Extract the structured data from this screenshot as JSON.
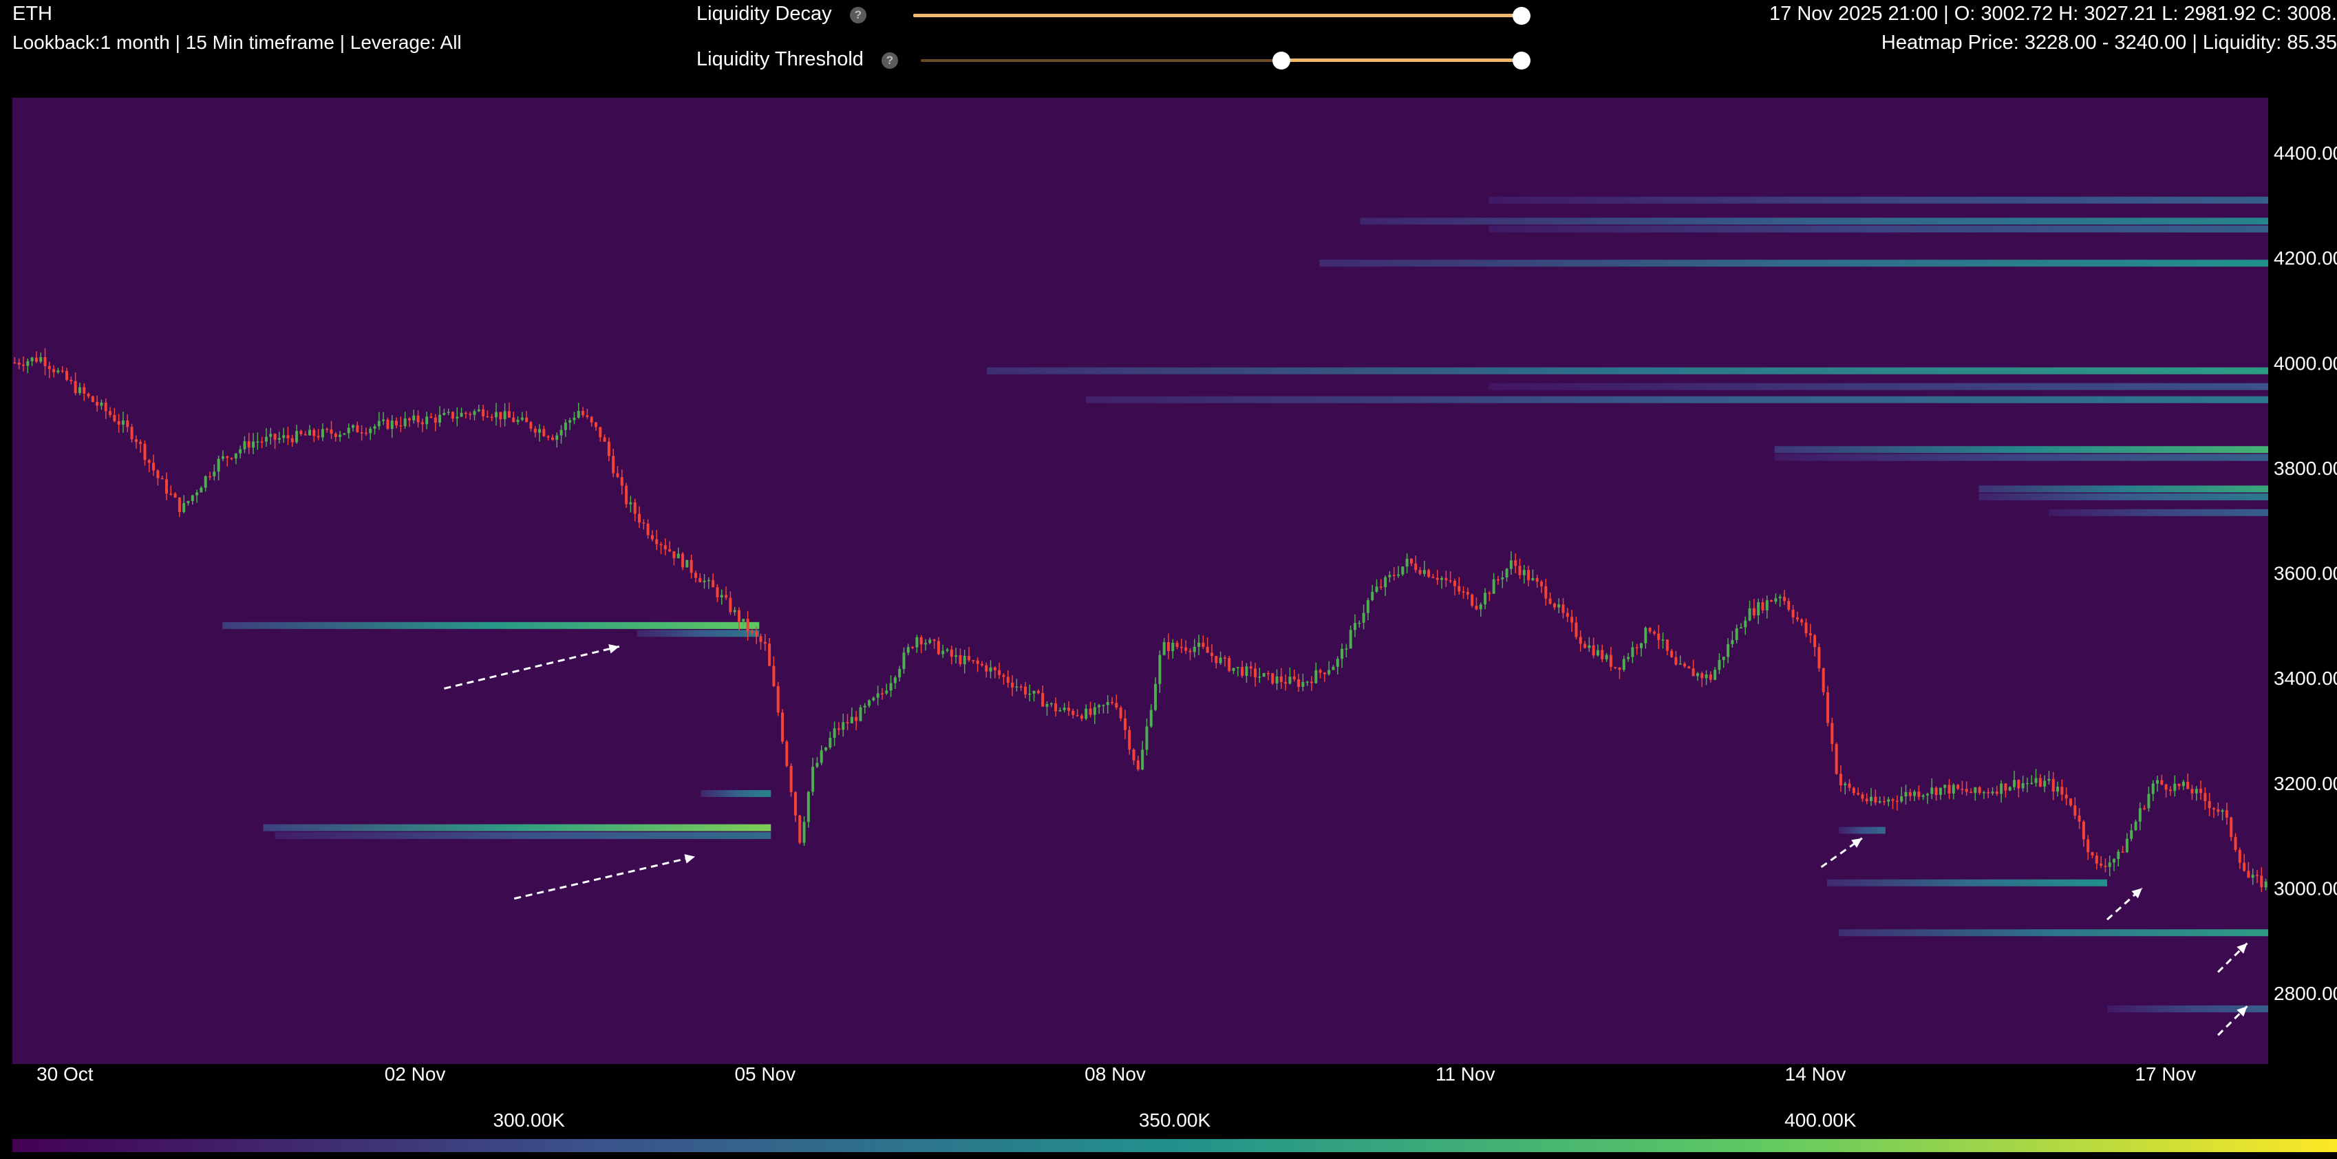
{
  "header": {
    "symbol": "ETH",
    "subinfo": "Lookback:1 month | 15 Min timeframe | Leverage: All",
    "ohlc": "17 Nov 2025 21:00 | O: 3002.72 H: 3027.21 L: 2981.92 C: 3008.",
    "heatmap_price": "Heatmap Price: 3228.00 - 3240.00 | Liquidity: 85.35"
  },
  "controls": {
    "decay": {
      "label": "Liquidity Decay",
      "help": "?",
      "value": 1.0
    },
    "threshold": {
      "label": "Liquidity Threshold",
      "help": "?",
      "range": [
        0.6,
        1.0
      ]
    }
  },
  "colors": {
    "background": "#3b0a4f",
    "up_candle": "#4caf50",
    "down_candle": "#f44336",
    "annotation": "#ffffff",
    "colorscale": [
      "#440154",
      "#3b528b",
      "#21918c",
      "#5ec962",
      "#fde725"
    ]
  },
  "chart_data": {
    "type": "heatmap",
    "overlay": "candlestick",
    "title": "",
    "xlabel": "",
    "ylabel": "",
    "x_ticks": [
      "30 Oct",
      "02 Nov",
      "05 Nov",
      "08 Nov",
      "11 Nov",
      "14 Nov",
      "17 Nov"
    ],
    "x_domain": [
      29.55,
      48.88
    ],
    "x_tick_values": [
      30.0,
      33.0,
      36.0,
      39.0,
      42.0,
      45.0,
      48.0
    ],
    "y_ticks": [
      "4400.00",
      "4200.00",
      "4000.00",
      "3800.00",
      "3600.00",
      "3400.00",
      "3200.00",
      "3000.00",
      "2800.00"
    ],
    "ylim": [
      2665,
      4505
    ],
    "price_path": [
      [
        29.55,
        4000
      ],
      [
        29.8,
        4010
      ],
      [
        30.1,
        3950
      ],
      [
        30.4,
        3900
      ],
      [
        30.6,
        3860
      ],
      [
        30.8,
        3780
      ],
      [
        31.0,
        3720
      ],
      [
        31.3,
        3810
      ],
      [
        31.6,
        3850
      ],
      [
        32.0,
        3860
      ],
      [
        32.4,
        3870
      ],
      [
        32.8,
        3885
      ],
      [
        33.2,
        3895
      ],
      [
        33.6,
        3910
      ],
      [
        34.0,
        3880
      ],
      [
        34.2,
        3860
      ],
      [
        34.4,
        3910
      ],
      [
        34.6,
        3860
      ],
      [
        34.8,
        3740
      ],
      [
        35.0,
        3680
      ],
      [
        35.3,
        3620
      ],
      [
        35.6,
        3560
      ],
      [
        35.9,
        3480
      ],
      [
        36.0,
        3460
      ],
      [
        36.1,
        3350
      ],
      [
        36.2,
        3220
      ],
      [
        36.3,
        3090
      ],
      [
        36.4,
        3220
      ],
      [
        36.6,
        3300
      ],
      [
        36.8,
        3330
      ],
      [
        37.0,
        3370
      ],
      [
        37.3,
        3480
      ],
      [
        37.6,
        3440
      ],
      [
        37.9,
        3420
      ],
      [
        38.2,
        3380
      ],
      [
        38.5,
        3340
      ],
      [
        38.8,
        3330
      ],
      [
        39.0,
        3360
      ],
      [
        39.2,
        3220
      ],
      [
        39.4,
        3460
      ],
      [
        39.7,
        3460
      ],
      [
        40.0,
        3420
      ],
      [
        40.3,
        3400
      ],
      [
        40.6,
        3390
      ],
      [
        40.9,
        3430
      ],
      [
        41.2,
        3560
      ],
      [
        41.5,
        3620
      ],
      [
        41.8,
        3590
      ],
      [
        42.1,
        3540
      ],
      [
        42.4,
        3620
      ],
      [
        42.7,
        3560
      ],
      [
        43.0,
        3470
      ],
      [
        43.3,
        3420
      ],
      [
        43.6,
        3500
      ],
      [
        43.8,
        3420
      ],
      [
        44.1,
        3400
      ],
      [
        44.4,
        3520
      ],
      [
        44.7,
        3560
      ],
      [
        45.0,
        3460
      ],
      [
        45.2,
        3200
      ],
      [
        45.5,
        3160
      ],
      [
        45.8,
        3180
      ],
      [
        46.1,
        3190
      ],
      [
        46.4,
        3180
      ],
      [
        46.7,
        3200
      ],
      [
        47.0,
        3200
      ],
      [
        47.2,
        3160
      ],
      [
        47.4,
        3040
      ],
      [
        47.6,
        3060
      ],
      [
        47.9,
        3200
      ],
      [
        48.2,
        3190
      ],
      [
        48.5,
        3140
      ],
      [
        48.7,
        3020
      ],
      [
        48.88,
        3005
      ]
    ],
    "liquidity_bands": [
      {
        "price": 4310,
        "x_start": 42.2,
        "x_end": 48.88,
        "intensity": 0.3
      },
      {
        "price": 4270,
        "x_start": 41.1,
        "x_end": 48.88,
        "intensity": 0.45
      },
      {
        "price": 4255,
        "x_start": 42.2,
        "x_end": 48.88,
        "intensity": 0.3
      },
      {
        "price": 4190,
        "x_start": 40.75,
        "x_end": 48.88,
        "intensity": 0.5
      },
      {
        "price": 3985,
        "x_start": 37.9,
        "x_end": 48.88,
        "intensity": 0.55
      },
      {
        "price": 3955,
        "x_start": 42.2,
        "x_end": 48.88,
        "intensity": 0.25
      },
      {
        "price": 3930,
        "x_start": 38.75,
        "x_end": 48.88,
        "intensity": 0.4
      },
      {
        "price": 3835,
        "x_start": 44.65,
        "x_end": 48.88,
        "intensity": 0.65
      },
      {
        "price": 3820,
        "x_start": 44.65,
        "x_end": 48.88,
        "intensity": 0.3
      },
      {
        "price": 3760,
        "x_start": 46.4,
        "x_end": 48.88,
        "intensity": 0.6
      },
      {
        "price": 3745,
        "x_start": 46.4,
        "x_end": 48.88,
        "intensity": 0.4
      },
      {
        "price": 3715,
        "x_start": 47.0,
        "x_end": 48.88,
        "intensity": 0.3
      },
      {
        "price": 3500,
        "x_start": 31.35,
        "x_end": 35.95,
        "intensity": 0.75
      },
      {
        "price": 3485,
        "x_start": 34.9,
        "x_end": 35.95,
        "intensity": 0.4
      },
      {
        "price": 3180,
        "x_start": 35.45,
        "x_end": 36.05,
        "intensity": 0.45
      },
      {
        "price": 3115,
        "x_start": 31.7,
        "x_end": 36.05,
        "intensity": 0.8
      },
      {
        "price": 3100,
        "x_start": 31.8,
        "x_end": 36.05,
        "intensity": 0.35
      },
      {
        "price": 3110,
        "x_start": 45.2,
        "x_end": 45.6,
        "intensity": 0.35
      },
      {
        "price": 3010,
        "x_start": 45.1,
        "x_end": 47.5,
        "intensity": 0.5
      },
      {
        "price": 2915,
        "x_start": 45.2,
        "x_end": 48.88,
        "intensity": 0.55
      },
      {
        "price": 2770,
        "x_start": 47.5,
        "x_end": 48.88,
        "intensity": 0.3
      }
    ],
    "annotations": [
      {
        "type": "arrow",
        "from": [
          33.25,
          3380
        ],
        "to": [
          34.75,
          3460
        ]
      },
      {
        "type": "arrow",
        "from": [
          33.85,
          2980
        ],
        "to": [
          35.4,
          3060
        ]
      },
      {
        "type": "arrow",
        "from": [
          45.05,
          3040
        ],
        "to": [
          45.4,
          3095
        ]
      },
      {
        "type": "arrow",
        "from": [
          47.5,
          2940
        ],
        "to": [
          47.8,
          3000
        ]
      },
      {
        "type": "arrow",
        "from": [
          48.45,
          2840
        ],
        "to": [
          48.7,
          2895
        ]
      },
      {
        "type": "arrow",
        "from": [
          48.45,
          2720
        ],
        "to": [
          48.7,
          2775
        ]
      }
    ],
    "colorbar": {
      "ticks": [
        "300.00K",
        "350.00K",
        "400.00K"
      ],
      "tick_values": [
        300,
        350,
        400
      ],
      "range": [
        260,
        440
      ]
    }
  }
}
